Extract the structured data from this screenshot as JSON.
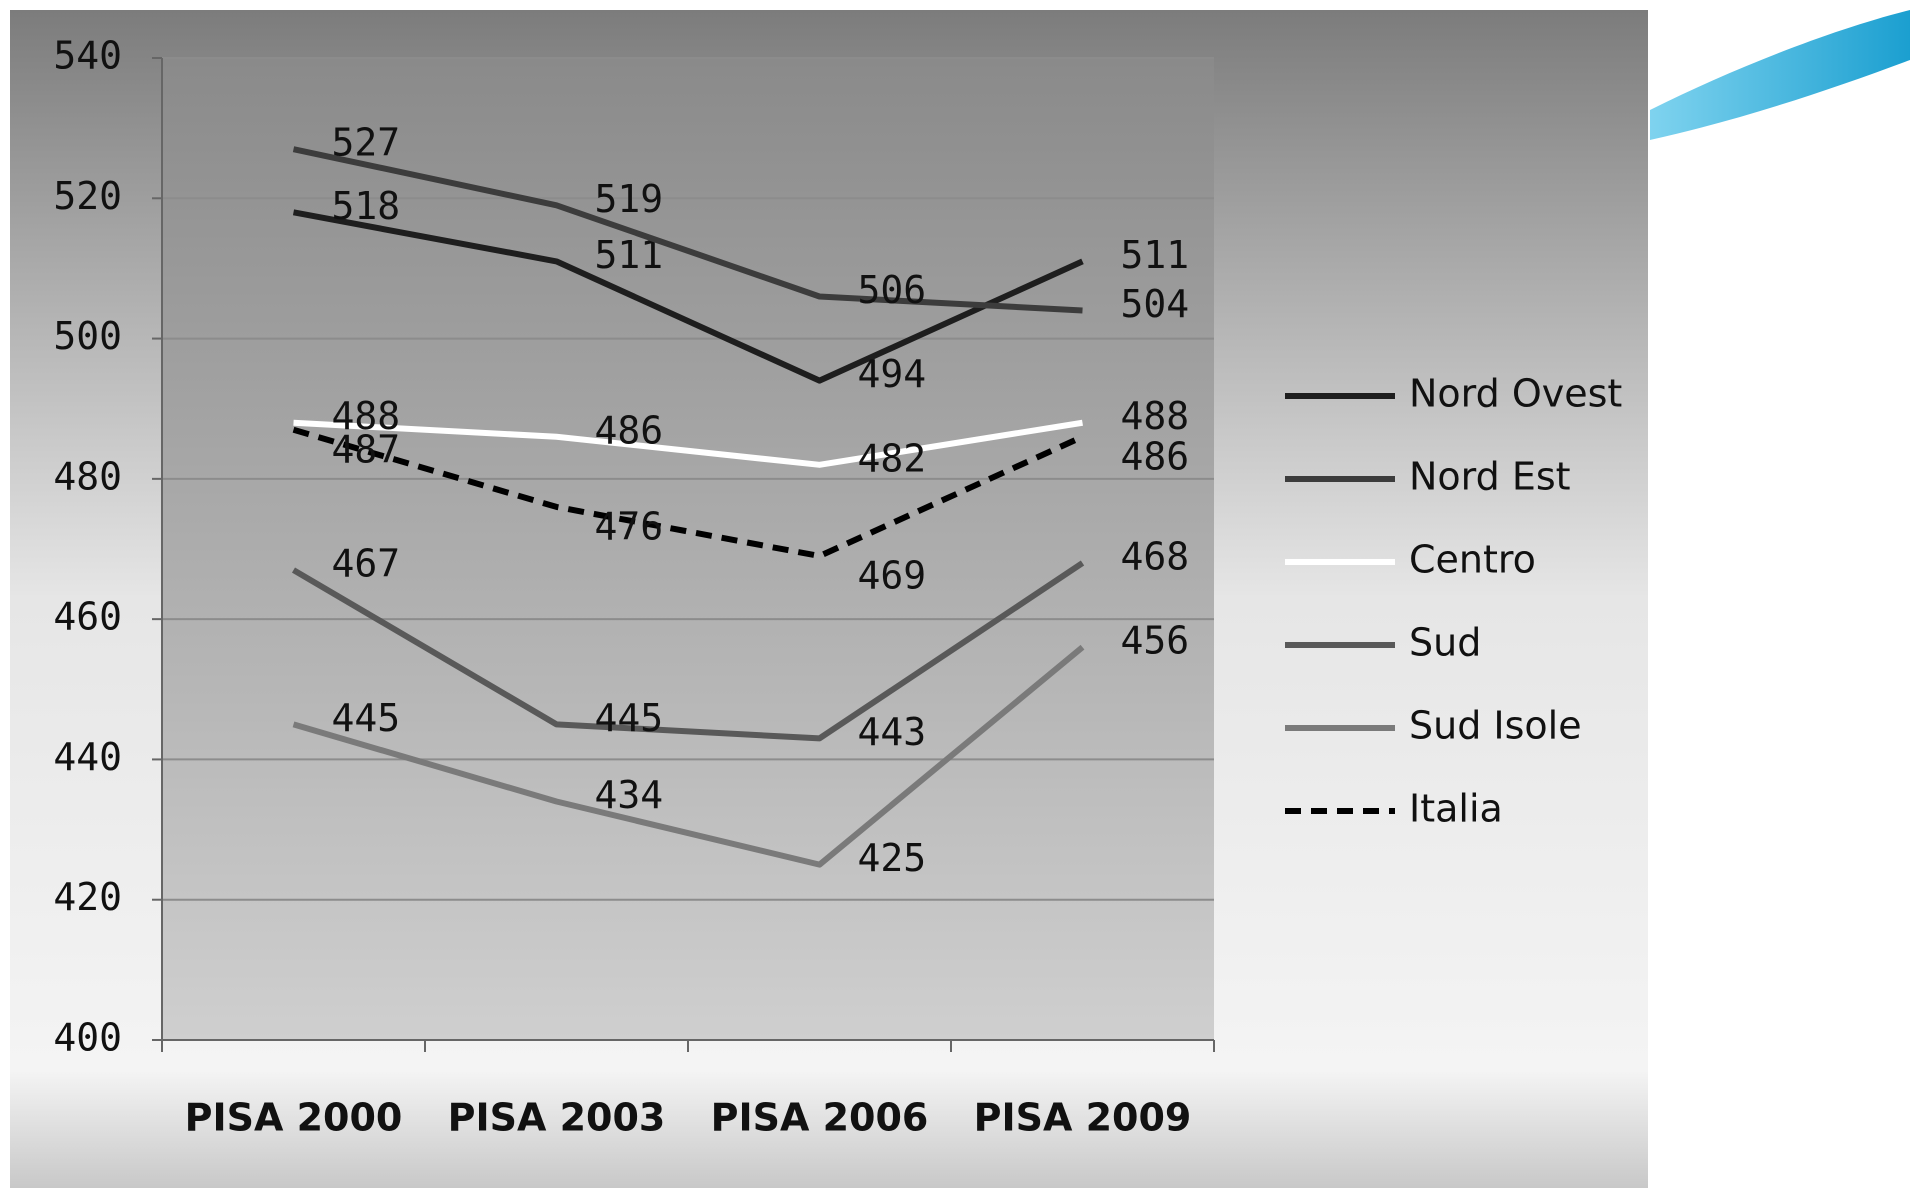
{
  "chart_data": {
    "type": "line",
    "categories": [
      "PISA 2000",
      "PISA 2003",
      "PISA 2006",
      "PISA 2009"
    ],
    "series": [
      {
        "name": "Nord Ovest",
        "color": "#1e1e1e",
        "values": [
          518,
          511,
          494,
          511
        ]
      },
      {
        "name": "Nord Est",
        "color": "#3c3c3c",
        "values": [
          527,
          519,
          506,
          504
        ]
      },
      {
        "name": "Centro",
        "color": "#ffffff",
        "values": [
          488,
          486,
          482,
          488
        ]
      },
      {
        "name": "Sud",
        "color": "#595959",
        "values": [
          467,
          445,
          443,
          468
        ]
      },
      {
        "name": "Sud Isole",
        "color": "#7a7a7a",
        "values": [
          445,
          434,
          425,
          456
        ]
      },
      {
        "name": "Italia",
        "color": "#000000",
        "dashed": true,
        "values": [
          487,
          476,
          469,
          486
        ]
      }
    ],
    "ylim": [
      400,
      540
    ],
    "yticks": [
      400,
      420,
      440,
      460,
      480,
      500,
      520,
      540
    ],
    "grid": true,
    "legend": "right"
  }
}
